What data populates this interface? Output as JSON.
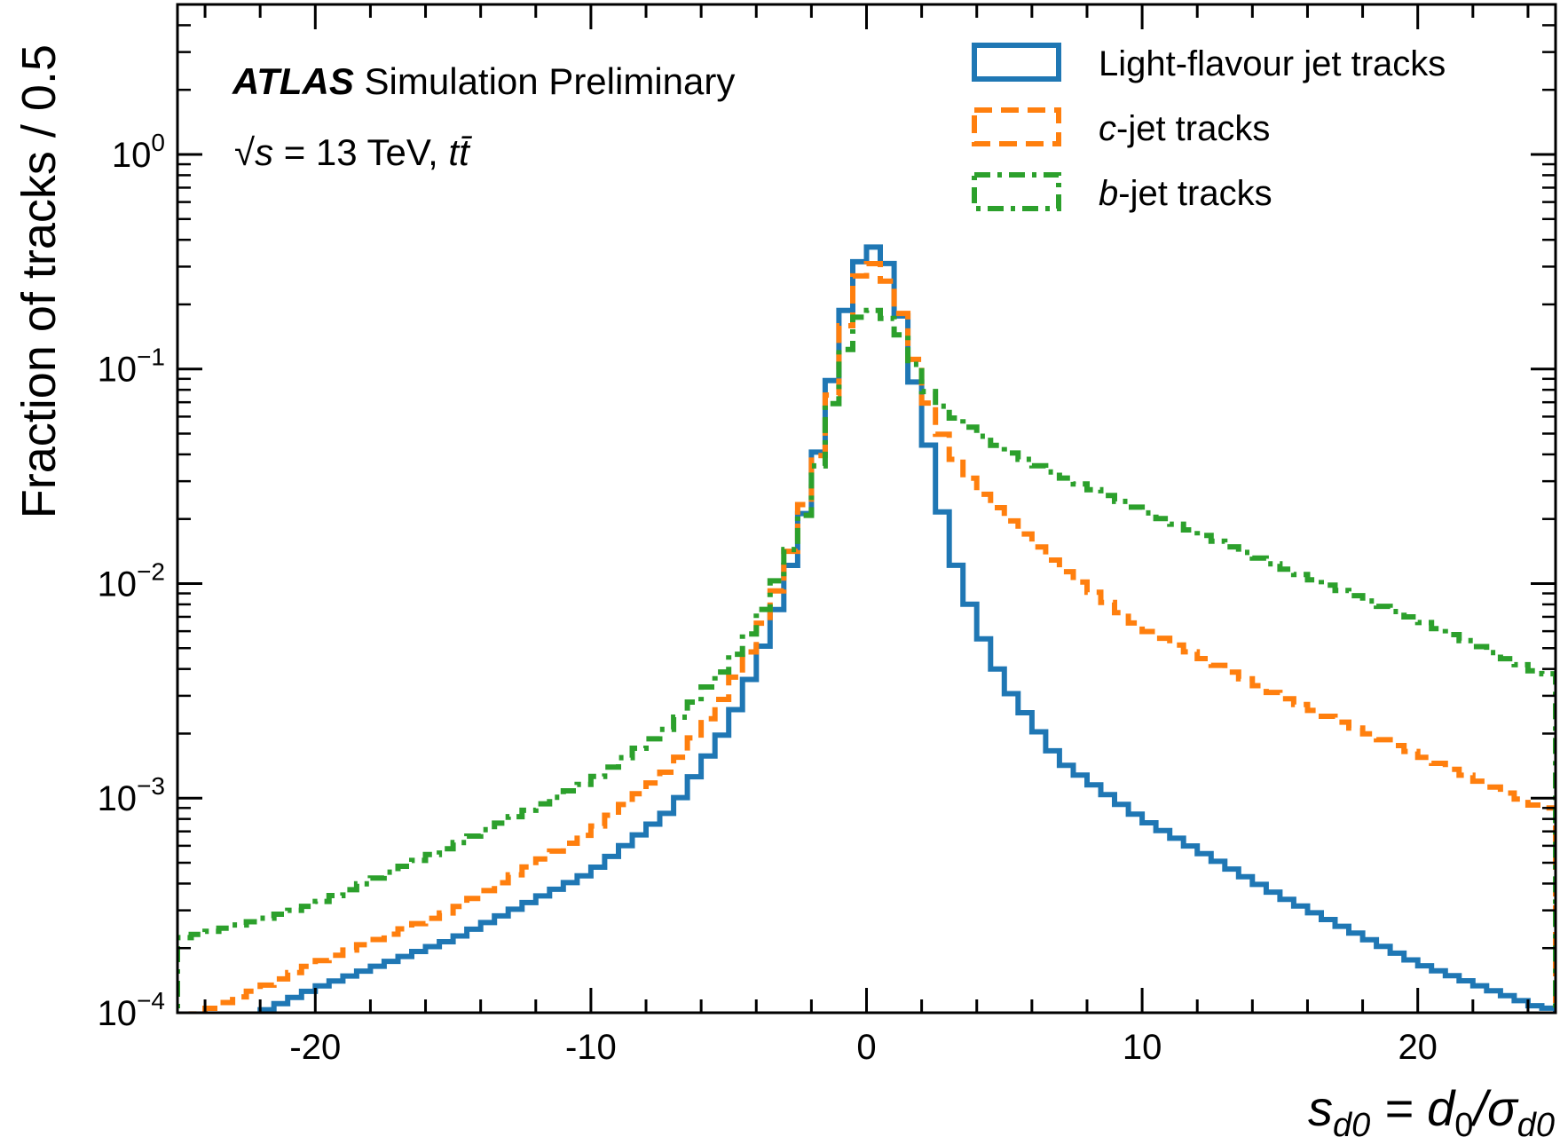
{
  "chart_data": {
    "type": "histogram-step",
    "ylabel": "Fraction of tracks / 0.5",
    "xlabel_parts": [
      "s",
      "d0",
      " = d",
      "0",
      "/σ",
      "d0"
    ],
    "annotation": {
      "experiment": "ATLAS",
      "label": "Simulation Preliminary",
      "energy_prefix": "√",
      "energy_var": "s",
      "energy_text": " = 13 TeV, ",
      "process": "tt̄"
    },
    "xlim": [
      -25,
      25
    ],
    "ylim": [
      0.0001,
      5
    ],
    "yscale": "log",
    "bin_width": 0.5,
    "x_ticks": [
      -20,
      -10,
      0,
      10,
      20
    ],
    "x_tick_labels": [
      "-20",
      "-10",
      "0",
      "10",
      "20"
    ],
    "y_ticks": [
      0.0001,
      0.001,
      0.01,
      0.1,
      1
    ],
    "y_tick_labels": [
      {
        "base": "10",
        "exp": "−4"
      },
      {
        "base": "10",
        "exp": "−3"
      },
      {
        "base": "10",
        "exp": "−2"
      },
      {
        "base": "10",
        "exp": "−1"
      },
      {
        "base": "10",
        "exp": "0"
      }
    ],
    "legend": {
      "placement": "top-right"
    },
    "series": [
      {
        "name_italic": "",
        "name_rest": "Light-flavour jet tracks",
        "color": "#1f77b4",
        "style": "solid",
        "anchors": [
          [
            -25,
            3e-05
          ],
          [
            -22,
            0.0001
          ],
          [
            -20,
            0.00013
          ],
          [
            -15,
            0.00022
          ],
          [
            -10,
            0.00045
          ],
          [
            -7,
            0.0009
          ],
          [
            -5,
            0.0022
          ],
          [
            -4,
            0.0042
          ],
          [
            -3,
            0.0092
          ],
          [
            -2,
            0.028
          ],
          [
            -1.5,
            0.06
          ],
          [
            -1,
            0.13
          ],
          [
            -0.5,
            0.27
          ],
          [
            0,
            0.37
          ],
          [
            0.5,
            0.37
          ],
          [
            1,
            0.26
          ],
          [
            1.5,
            0.12
          ],
          [
            2,
            0.063
          ],
          [
            2.5,
            0.031
          ],
          [
            3,
            0.015
          ],
          [
            4,
            0.0065
          ],
          [
            5,
            0.0034
          ],
          [
            7,
            0.0015
          ],
          [
            10,
            0.0008
          ],
          [
            15,
            0.00035
          ],
          [
            20,
            0.00017
          ],
          [
            24.5,
            0.000105
          ]
        ]
      },
      {
        "name_italic": "c",
        "name_rest": "-jet tracks",
        "color": "#ff7f0e",
        "style": "dashed",
        "anchors": [
          [
            -25,
            9e-05
          ],
          [
            -22,
            0.00013
          ],
          [
            -20,
            0.00017
          ],
          [
            -15,
            0.0003
          ],
          [
            -10,
            0.0007
          ],
          [
            -7,
            0.0014
          ],
          [
            -5,
            0.0032
          ],
          [
            -4,
            0.0055
          ],
          [
            -3,
            0.011
          ],
          [
            -2,
            0.03
          ],
          [
            -1.5,
            0.052
          ],
          [
            -1,
            0.11
          ],
          [
            -0.5,
            0.23
          ],
          [
            0,
            0.32
          ],
          [
            0.5,
            0.3
          ],
          [
            1,
            0.22
          ],
          [
            1.5,
            0.15
          ],
          [
            2,
            0.082
          ],
          [
            3,
            0.042
          ],
          [
            4,
            0.028
          ],
          [
            5,
            0.021
          ],
          [
            7,
            0.012
          ],
          [
            10,
            0.0062
          ],
          [
            15,
            0.003
          ],
          [
            20,
            0.0016
          ],
          [
            24.5,
            0.0009
          ]
        ]
      },
      {
        "name_italic": "b",
        "name_rest": "-jet tracks",
        "color": "#2ca02c",
        "style": "dashdot",
        "anchors": [
          [
            -25,
            0.00022
          ],
          [
            -22,
            0.00027
          ],
          [
            -20,
            0.00032
          ],
          [
            -15,
            0.0006
          ],
          [
            -10,
            0.0012
          ],
          [
            -7,
            0.0022
          ],
          [
            -5,
            0.0042
          ],
          [
            -4,
            0.0065
          ],
          [
            -3,
            0.012
          ],
          [
            -2,
            0.025
          ],
          [
            -1.5,
            0.05
          ],
          [
            -1,
            0.095
          ],
          [
            -0.5,
            0.16
          ],
          [
            0,
            0.19
          ],
          [
            0.5,
            0.185
          ],
          [
            1,
            0.16
          ],
          [
            1.5,
            0.13
          ],
          [
            2,
            0.085
          ],
          [
            3,
            0.062
          ],
          [
            5,
            0.042
          ],
          [
            7,
            0.032
          ],
          [
            10,
            0.022
          ],
          [
            15,
            0.012
          ],
          [
            20,
            0.0068
          ],
          [
            24.5,
            0.0038
          ]
        ]
      }
    ]
  }
}
